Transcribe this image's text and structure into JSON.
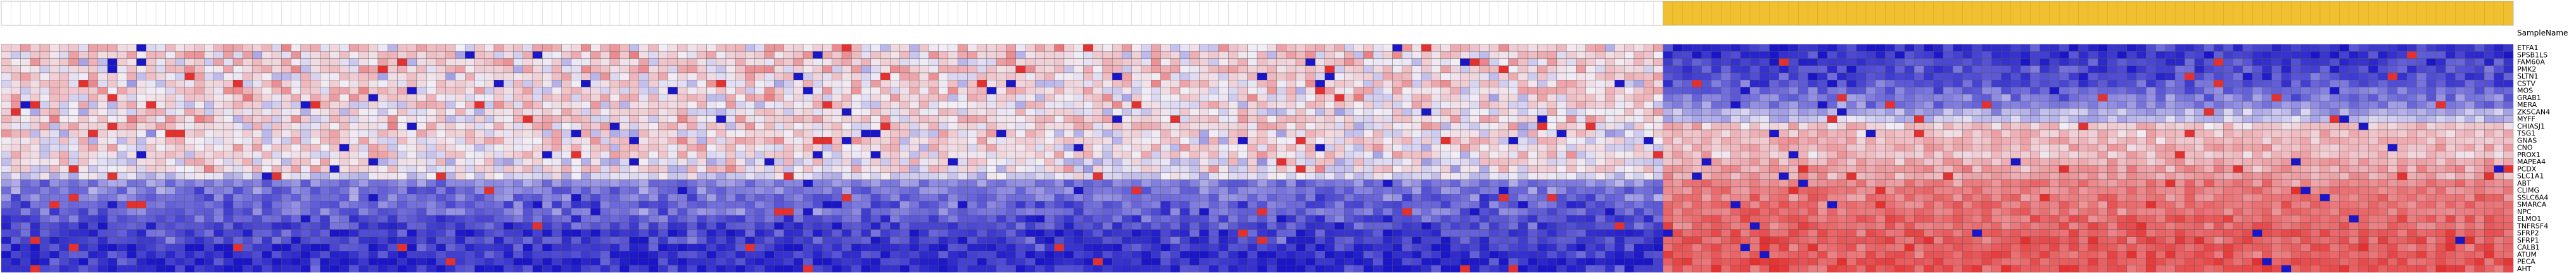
{
  "chart_data": {
    "type": "heatmap",
    "header_label": "SampleName",
    "groups": [
      {
        "color": "#ffffff",
        "columns": 172
      },
      {
        "color": "#f0c030",
        "columns": 88
      }
    ],
    "columns_total": 260,
    "rows": [
      "ETFA1",
      "SPSB1LS",
      "FAM60A",
      "PMK2",
      "SLTN1",
      "CSTV",
      "MOS",
      "GRAB1",
      "MERA",
      "ZKSCAN4",
      "MYFF",
      "CHIASJ1",
      "TSG1",
      "GNAS",
      "CNO",
      "PROX1",
      "MAPEA4",
      "PCDX",
      "SLC1A1",
      "ABT",
      "CLIMG",
      "SSLC6A4",
      "SMARCA",
      "NPC",
      "ELMO1",
      "TNFRSF4",
      "SFRP2",
      "SFRP1",
      "CALB1",
      "ATUM",
      "PECA",
      "AHT"
    ],
    "color_scale": {
      "low": "#1a16c8",
      "mid": "#f2eef6",
      "high": "#e53030"
    },
    "row_means_group1": [
      0.15,
      0.15,
      0.1,
      0.15,
      0.1,
      0.1,
      0.15,
      0.1,
      0.1,
      0.05,
      0.15,
      0.1,
      0.05,
      0.1,
      0.1,
      0.1,
      0.0,
      0.05,
      -0.1,
      -0.5,
      -0.55,
      -0.6,
      -0.65,
      -0.6,
      -0.7,
      -0.75,
      -0.8,
      -0.8,
      -0.85,
      -0.85,
      -0.9,
      -0.9
    ],
    "row_means_group2": [
      -0.85,
      -0.85,
      -0.8,
      -0.75,
      -0.75,
      -0.7,
      -0.6,
      -0.55,
      -0.5,
      -0.3,
      -0.2,
      0.2,
      0.25,
      0.3,
      0.3,
      0.25,
      0.35,
      0.4,
      0.4,
      0.55,
      0.6,
      0.6,
      0.65,
      0.65,
      0.7,
      0.7,
      0.75,
      0.75,
      0.75,
      0.75,
      0.8,
      0.8
    ]
  }
}
